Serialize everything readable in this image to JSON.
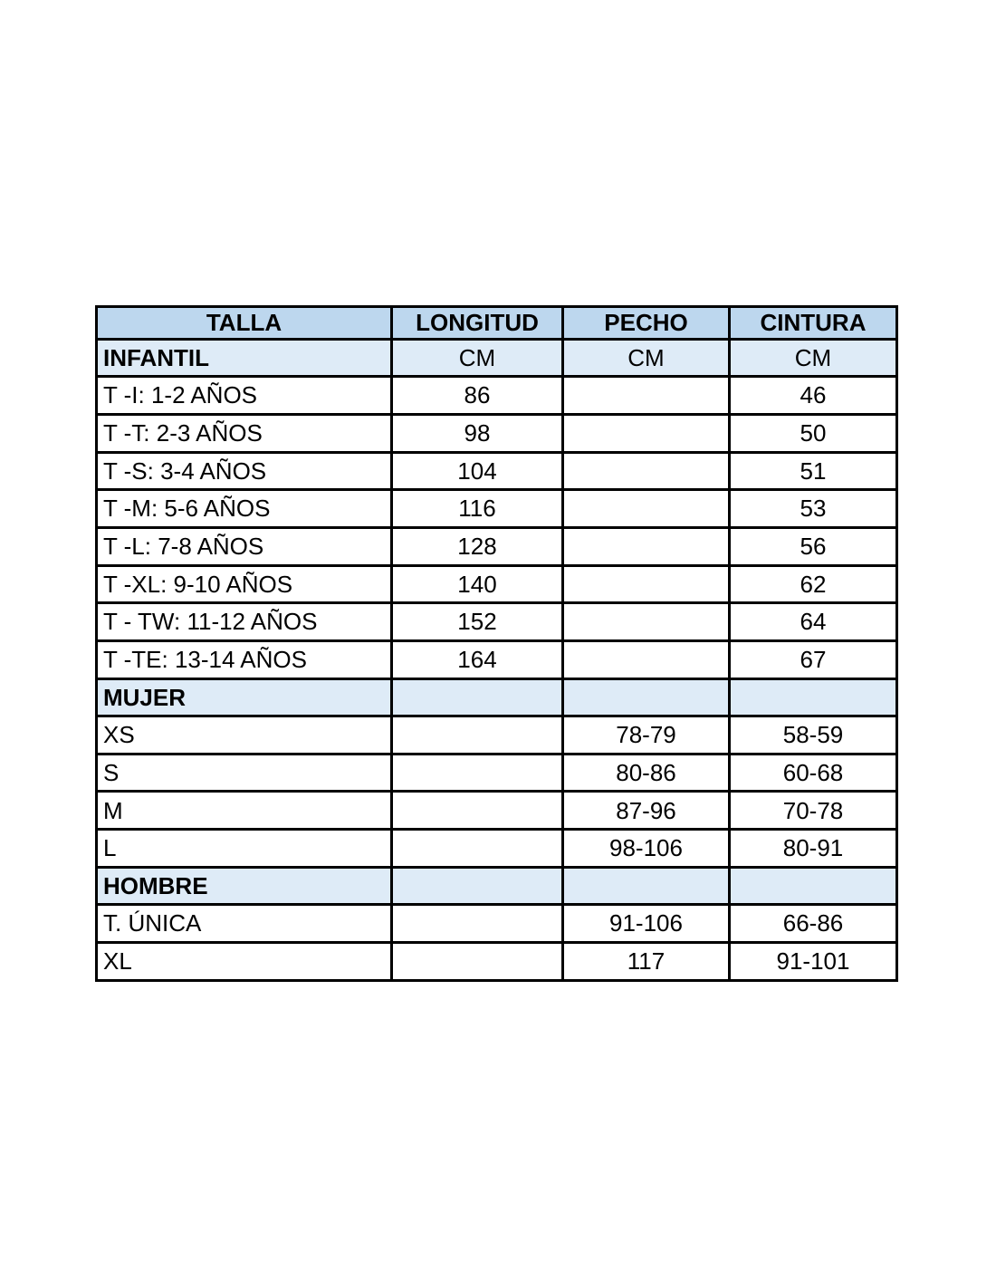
{
  "colors": {
    "header_bg": "#BDD7EE",
    "section_bg": "#DEEBF7",
    "row_bg": "#FFFFFF",
    "border": "#000000",
    "text": "#000000"
  },
  "table": {
    "columns": [
      "TALLA",
      "LONGITUD",
      "PECHO",
      "CINTURA"
    ],
    "rows": [
      {
        "type": "section",
        "cells": [
          "INFANTIL",
          "CM",
          "CM",
          "CM"
        ]
      },
      {
        "type": "data",
        "cells": [
          "T -I: 1-2 AÑOS",
          "86",
          "",
          "46"
        ]
      },
      {
        "type": "data",
        "cells": [
          "T -T: 2-3 AÑOS",
          "98",
          "",
          "50"
        ]
      },
      {
        "type": "data",
        "cells": [
          "T -S: 3-4 AÑOS",
          "104",
          "",
          "51"
        ]
      },
      {
        "type": "data",
        "cells": [
          "T -M: 5-6 AÑOS",
          "116",
          "",
          "53"
        ]
      },
      {
        "type": "data",
        "cells": [
          "T -L: 7-8 AÑOS",
          "128",
          "",
          "56"
        ]
      },
      {
        "type": "data",
        "cells": [
          "T -XL: 9-10 AÑOS",
          "140",
          "",
          "62"
        ]
      },
      {
        "type": "data",
        "cells": [
          "T - TW: 11-12 AÑOS",
          "152",
          "",
          "64"
        ]
      },
      {
        "type": "data",
        "cells": [
          "T -TE: 13-14 AÑOS",
          "164",
          "",
          "67"
        ]
      },
      {
        "type": "section",
        "cells": [
          "MUJER",
          "",
          "",
          ""
        ]
      },
      {
        "type": "data",
        "cells": [
          "XS",
          "",
          "78-79",
          "58-59"
        ]
      },
      {
        "type": "data",
        "cells": [
          "S",
          "",
          "80-86",
          "60-68"
        ]
      },
      {
        "type": "data",
        "cells": [
          "M",
          "",
          "87-96",
          "70-78"
        ]
      },
      {
        "type": "data",
        "cells": [
          "L",
          "",
          "98-106",
          "80-91"
        ]
      },
      {
        "type": "section",
        "cells": [
          "HOMBRE",
          "",
          "",
          ""
        ]
      },
      {
        "type": "data",
        "cells": [
          "T. ÚNICA",
          "",
          "91-106",
          "66-86"
        ]
      },
      {
        "type": "data",
        "cells": [
          "XL",
          "",
          "117",
          "91-101"
        ]
      }
    ]
  }
}
